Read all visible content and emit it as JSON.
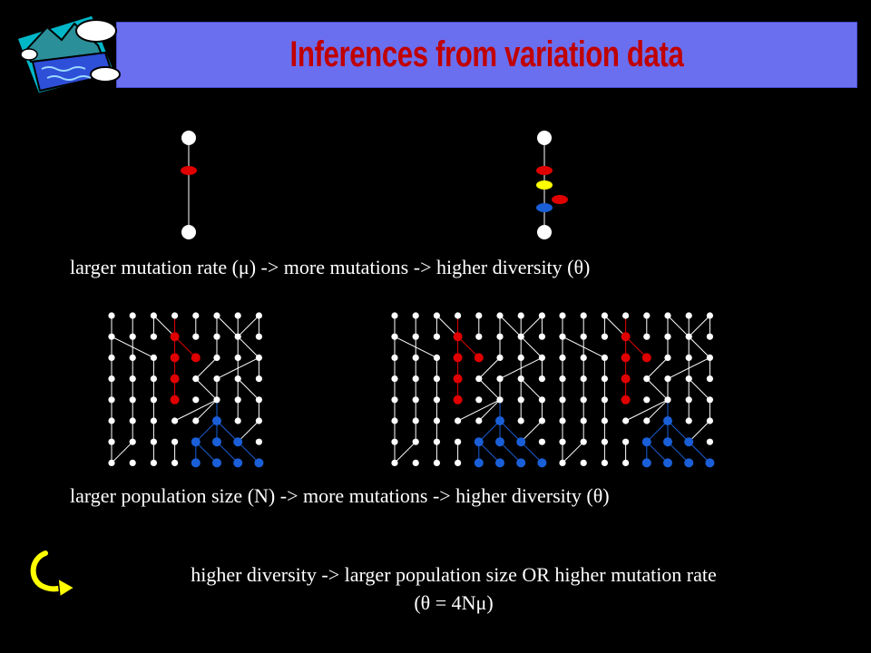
{
  "title": "Inferences from variation data",
  "captions": {
    "mutation_rate": "larger mutation rate (μ) -> more mutations -> higher diversity (θ)",
    "population_size": "larger population size (N) -> more mutations -> higher diversity (θ)",
    "inference_line1": "higher diversity -> larger population size OR higher mutation rate",
    "inference_line2": "(θ = 4Nμ)"
  },
  "icons": {
    "clipart": "lake-mountain-clipart-icon",
    "arrow": "curved-arrow-icon"
  },
  "colors": {
    "title_text": "#c00000",
    "title_bar": "#6a6ff0",
    "mutation_red": "#e00000",
    "mutation_yellow": "#ffff00",
    "mutation_blue": "#1a5fd8",
    "lineage_red": "#e00000",
    "lineage_blue": "#1a5fd8"
  }
}
